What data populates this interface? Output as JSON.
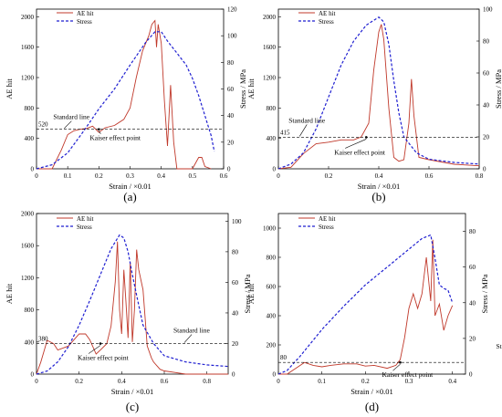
{
  "legend": {
    "ae": "AE hit",
    "stress": "Stress"
  },
  "ylabel_left": "AE hit",
  "ylabel_right": "Stress / MPa",
  "xlabel": "Strain / ×0.01",
  "standard_line_label": "Standard line",
  "kaiser_label": "Kaiser effect point",
  "chart_data": [
    {
      "type": "line",
      "caption": "(a)",
      "threshold": 520,
      "xlim": [
        0,
        0.6
      ],
      "x_ticks": [
        0,
        0.1,
        0.2,
        0.3,
        0.4,
        0.5,
        0.6
      ],
      "ylim_left": [
        0,
        2100
      ],
      "y_ticks_left": [
        0,
        400,
        800,
        1200,
        1600,
        2000
      ],
      "ylim_right": [
        0,
        120
      ],
      "y_ticks_right": [
        0,
        20,
        40,
        60,
        80,
        100,
        120
      ],
      "series": [
        {
          "name": "AE hit",
          "axis": "left",
          "x": [
            0,
            0.05,
            0.08,
            0.1,
            0.12,
            0.14,
            0.16,
            0.18,
            0.2,
            0.22,
            0.25,
            0.28,
            0.3,
            0.32,
            0.34,
            0.36,
            0.37,
            0.38,
            0.385,
            0.39,
            0.4,
            0.41,
            0.42,
            0.43,
            0.44,
            0.45,
            0.47,
            0.5,
            0.52,
            0.53,
            0.54,
            0.56
          ],
          "y": [
            0,
            0,
            250,
            450,
            500,
            520,
            530,
            560,
            480,
            540,
            570,
            650,
            800,
            1200,
            1550,
            1750,
            1900,
            1950,
            1600,
            1900,
            1650,
            900,
            300,
            1100,
            350,
            0,
            0,
            0,
            150,
            150,
            30,
            0
          ]
        },
        {
          "name": "Stress",
          "axis": "right",
          "x": [
            0,
            0.05,
            0.1,
            0.15,
            0.2,
            0.25,
            0.3,
            0.35,
            0.38,
            0.4,
            0.42,
            0.45,
            0.48,
            0.5,
            0.52,
            0.54,
            0.56,
            0.57
          ],
          "y": [
            0,
            3,
            12,
            28,
            45,
            60,
            78,
            95,
            103,
            103,
            96,
            87,
            78,
            68,
            55,
            40,
            25,
            13
          ]
        }
      ],
      "kaiser": [
        0.2,
        520
      ]
    },
    {
      "type": "line",
      "caption": "(b)",
      "threshold": 415,
      "xlim": [
        0,
        0.8
      ],
      "x_ticks": [
        0,
        0.2,
        0.4,
        0.6,
        0.8
      ],
      "ylim_left": [
        0,
        2100
      ],
      "y_ticks_left": [
        0,
        400,
        800,
        1200,
        1600,
        2000
      ],
      "ylim_right": [
        0,
        100
      ],
      "y_ticks_right": [
        0,
        20,
        40,
        60,
        80,
        100
      ],
      "series": [
        {
          "name": "AE hit",
          "axis": "left",
          "x": [
            0,
            0.05,
            0.1,
            0.15,
            0.2,
            0.25,
            0.3,
            0.33,
            0.36,
            0.38,
            0.4,
            0.41,
            0.42,
            0.44,
            0.46,
            0.48,
            0.5,
            0.52,
            0.53,
            0.54,
            0.56,
            0.6,
            0.7,
            0.8
          ],
          "y": [
            0,
            20,
            200,
            330,
            350,
            380,
            380,
            420,
            600,
            1300,
            1800,
            1900,
            1700,
            800,
            150,
            100,
            120,
            600,
            1180,
            700,
            150,
            120,
            60,
            40
          ]
        },
        {
          "name": "Stress",
          "axis": "right",
          "x": [
            0,
            0.05,
            0.1,
            0.15,
            0.2,
            0.25,
            0.3,
            0.35,
            0.4,
            0.42,
            0.44,
            0.46,
            0.48,
            0.5,
            0.55,
            0.6,
            0.7,
            0.8
          ],
          "y": [
            0,
            3,
            10,
            25,
            45,
            65,
            80,
            90,
            95,
            92,
            78,
            55,
            35,
            20,
            10,
            6,
            4,
            3
          ]
        }
      ],
      "kaiser": [
        0.35,
        415
      ]
    },
    {
      "type": "line",
      "caption": "(c)",
      "threshold": 380,
      "xlim": [
        0,
        0.9
      ],
      "x_ticks": [
        0,
        0.2,
        0.4,
        0.6,
        0.8
      ],
      "ylim_left": [
        0,
        2000
      ],
      "y_ticks_left": [
        0,
        400,
        800,
        1200,
        1600,
        2000
      ],
      "ylim_right": [
        0,
        105
      ],
      "y_ticks_right": [
        0,
        20,
        40,
        60,
        80,
        100
      ],
      "series": [
        {
          "name": "AE hit",
          "axis": "left",
          "x": [
            0,
            0.02,
            0.05,
            0.08,
            0.1,
            0.15,
            0.2,
            0.23,
            0.25,
            0.28,
            0.3,
            0.33,
            0.35,
            0.37,
            0.38,
            0.39,
            0.4,
            0.41,
            0.42,
            0.43,
            0.44,
            0.45,
            0.46,
            0.47,
            0.48,
            0.5,
            0.52,
            0.54,
            0.55,
            0.58,
            0.6,
            0.65,
            0.7,
            0.9
          ],
          "y": [
            0,
            150,
            420,
            380,
            300,
            350,
            500,
            500,
            430,
            250,
            300,
            380,
            600,
            1150,
            1650,
            800,
            500,
            1300,
            900,
            450,
            1400,
            400,
            800,
            1550,
            1300,
            1050,
            350,
            200,
            150,
            60,
            40,
            20,
            0,
            0
          ]
        },
        {
          "name": "Stress",
          "axis": "right",
          "x": [
            0,
            0.05,
            0.1,
            0.15,
            0.2,
            0.25,
            0.3,
            0.35,
            0.39,
            0.41,
            0.43,
            0.45,
            0.48,
            0.5,
            0.55,
            0.6,
            0.7,
            0.8,
            0.9
          ],
          "y": [
            0,
            2,
            8,
            18,
            32,
            48,
            65,
            82,
            91,
            89,
            80,
            65,
            45,
            32,
            20,
            12,
            8,
            6,
            5
          ]
        }
      ],
      "kaiser": [
        0.3,
        380
      ]
    },
    {
      "type": "line",
      "caption": "(d)",
      "threshold": 80,
      "xlim": [
        0,
        0.43
      ],
      "x_ticks": [
        0,
        0.1,
        0.2,
        0.3,
        0.4
      ],
      "ylim_left": [
        0,
        1100
      ],
      "y_ticks_left": [
        0,
        200,
        400,
        600,
        800,
        1000
      ],
      "ylim_right": [
        0,
        90
      ],
      "y_ticks_right": [
        0,
        20,
        40,
        60,
        80
      ],
      "series": [
        {
          "name": "AE hit",
          "axis": "left",
          "x": [
            0,
            0.02,
            0.04,
            0.06,
            0.08,
            0.1,
            0.12,
            0.15,
            0.18,
            0.2,
            0.22,
            0.25,
            0.27,
            0.28,
            0.29,
            0.3,
            0.31,
            0.32,
            0.33,
            0.34,
            0.35,
            0.355,
            0.36,
            0.37,
            0.38,
            0.39,
            0.4
          ],
          "y": [
            0,
            0,
            40,
            80,
            60,
            50,
            60,
            70,
            70,
            55,
            60,
            40,
            60,
            100,
            250,
            450,
            550,
            450,
            550,
            800,
            500,
            920,
            400,
            480,
            300,
            400,
            470
          ]
        },
        {
          "name": "Stress",
          "axis": "right",
          "x": [
            0,
            0.02,
            0.05,
            0.1,
            0.15,
            0.2,
            0.25,
            0.3,
            0.33,
            0.35,
            0.36,
            0.37,
            0.38,
            0.39,
            0.4
          ],
          "y": [
            0,
            2,
            10,
            25,
            38,
            50,
            60,
            70,
            76,
            78,
            65,
            50,
            48,
            47,
            40
          ]
        }
      ],
      "kaiser": [
        0.28,
        80
      ]
    }
  ]
}
